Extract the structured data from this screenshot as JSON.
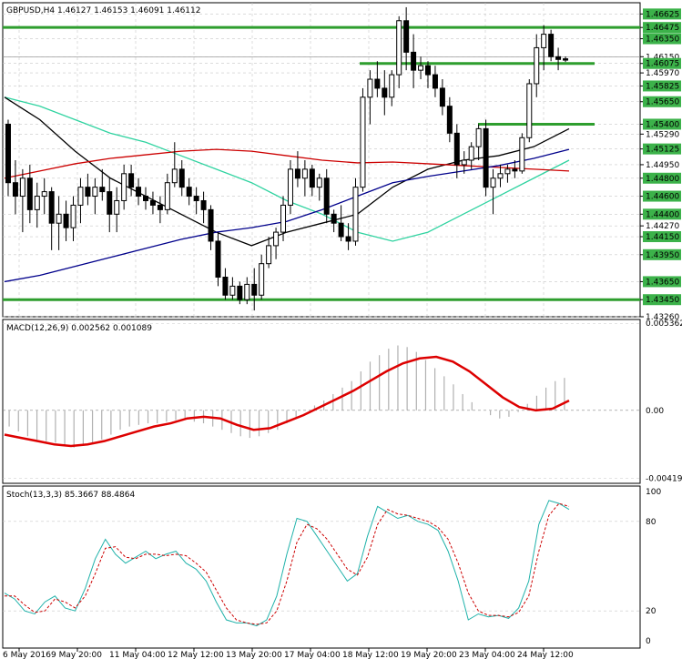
{
  "chart_data": [
    {
      "type": "candlestick",
      "panel": "price",
      "title": "GBPUSD,H4  1.46127 1.46153 1.46091 1.46112",
      "y_range": [
        1.4326,
        1.4675
      ],
      "y_ticks": [
        "1.46625",
        "1.46475",
        "1.46350",
        "1.46150",
        "1.46075",
        "1.45970",
        "1.45825",
        "1.45650",
        "1.45400",
        "1.45290",
        "1.45125",
        "1.44950",
        "1.44800",
        "1.44600",
        "1.44400",
        "1.44270",
        "1.44150",
        "1.43950",
        "1.43650",
        "1.43450",
        "1.43260"
      ],
      "highlighted_levels": [
        "1.46625",
        "1.46475",
        "1.46350",
        "1.46075",
        "1.45825",
        "1.45650",
        "1.45400",
        "1.45125",
        "1.44800",
        "1.44600",
        "1.44400",
        "1.44150",
        "1.43950",
        "1.43650",
        "1.43450"
      ],
      "support_resistance_levels": [
        1.46475,
        1.46075,
        1.454,
        1.4345
      ],
      "x_labels": [
        "6 May 2016",
        "9 May 20:00",
        "11 May 04:00",
        "12 May 12:00",
        "13 May 20:00",
        "17 May 04:00",
        "18 May 12:00",
        "19 May 20:00",
        "23 May 04:00",
        "24 May 12:00"
      ],
      "candles": [
        [
          1.454,
          1.4545,
          1.446,
          1.4475
        ],
        [
          1.4475,
          1.45,
          1.444,
          1.446
        ],
        [
          1.446,
          1.449,
          1.442,
          1.448
        ],
        [
          1.448,
          1.4495,
          1.443,
          1.4445
        ],
        [
          1.4445,
          1.4475,
          1.4425,
          1.446
        ],
        [
          1.446,
          1.448,
          1.444,
          1.4465
        ],
        [
          1.4465,
          1.447,
          1.44,
          1.443
        ],
        [
          1.443,
          1.446,
          1.44,
          1.444
        ],
        [
          1.444,
          1.4455,
          1.441,
          1.4425
        ],
        [
          1.4425,
          1.446,
          1.441,
          1.445
        ],
        [
          1.445,
          1.448,
          1.443,
          1.447
        ],
        [
          1.447,
          1.4485,
          1.445,
          1.446
        ],
        [
          1.446,
          1.448,
          1.444,
          1.447
        ],
        [
          1.447,
          1.449,
          1.4455,
          1.4465
        ],
        [
          1.4465,
          1.448,
          1.442,
          1.444
        ],
        [
          1.444,
          1.447,
          1.442,
          1.4455
        ],
        [
          1.4455,
          1.4495,
          1.4445,
          1.4485
        ],
        [
          1.4485,
          1.4495,
          1.446,
          1.447
        ],
        [
          1.447,
          1.448,
          1.445,
          1.446
        ],
        [
          1.446,
          1.447,
          1.4445,
          1.4455
        ],
        [
          1.4455,
          1.4465,
          1.444,
          1.445
        ],
        [
          1.445,
          1.446,
          1.443,
          1.4445
        ],
        [
          1.4445,
          1.4485,
          1.444,
          1.4475
        ],
        [
          1.4475,
          1.452,
          1.447,
          1.449
        ],
        [
          1.449,
          1.45,
          1.446,
          1.447
        ],
        [
          1.447,
          1.448,
          1.445,
          1.446
        ],
        [
          1.446,
          1.447,
          1.444,
          1.4455
        ],
        [
          1.4455,
          1.4465,
          1.443,
          1.4445
        ],
        [
          1.4445,
          1.445,
          1.44,
          1.441
        ],
        [
          1.441,
          1.442,
          1.436,
          1.437
        ],
        [
          1.437,
          1.438,
          1.4345,
          1.435
        ],
        [
          1.435,
          1.437,
          1.4345,
          1.436
        ],
        [
          1.436,
          1.4365,
          1.434,
          1.4345
        ],
        [
          1.4345,
          1.437,
          1.434,
          1.4362
        ],
        [
          1.4362,
          1.438,
          1.4333,
          1.435
        ],
        [
          1.435,
          1.4395,
          1.4345,
          1.4385
        ],
        [
          1.4385,
          1.4415,
          1.438,
          1.4405
        ],
        [
          1.4405,
          1.4425,
          1.439,
          1.442
        ],
        [
          1.442,
          1.446,
          1.441,
          1.445
        ],
        [
          1.445,
          1.45,
          1.444,
          1.449
        ],
        [
          1.449,
          1.451,
          1.447,
          1.448
        ],
        [
          1.448,
          1.45,
          1.446,
          1.449
        ],
        [
          1.449,
          1.4495,
          1.446,
          1.447
        ],
        [
          1.447,
          1.4485,
          1.4455,
          1.448
        ],
        [
          1.448,
          1.449,
          1.443,
          1.444
        ],
        [
          1.444,
          1.4445,
          1.442,
          1.443
        ],
        [
          1.443,
          1.445,
          1.441,
          1.4415
        ],
        [
          1.4415,
          1.443,
          1.44,
          1.441
        ],
        [
          1.441,
          1.448,
          1.4405,
          1.447
        ],
        [
          1.447,
          1.458,
          1.4465,
          1.457
        ],
        [
          1.457,
          1.46,
          1.454,
          1.459
        ],
        [
          1.459,
          1.461,
          1.457,
          1.458
        ],
        [
          1.458,
          1.46,
          1.455,
          1.457
        ],
        [
          1.457,
          1.46,
          1.456,
          1.4595
        ],
        [
          1.4595,
          1.466,
          1.458,
          1.4655
        ],
        [
          1.4655,
          1.467,
          1.46,
          1.462
        ],
        [
          1.462,
          1.464,
          1.458,
          1.46
        ],
        [
          1.46,
          1.4615,
          1.459,
          1.4605
        ],
        [
          1.4605,
          1.461,
          1.458,
          1.4595
        ],
        [
          1.4595,
          1.4605,
          1.457,
          1.458
        ],
        [
          1.458,
          1.459,
          1.455,
          1.456
        ],
        [
          1.456,
          1.457,
          1.452,
          1.453
        ],
        [
          1.453,
          1.454,
          1.448,
          1.4495
        ],
        [
          1.4495,
          1.451,
          1.4485,
          1.45
        ],
        [
          1.45,
          1.452,
          1.449,
          1.4515
        ],
        [
          1.4515,
          1.454,
          1.45,
          1.4535
        ],
        [
          1.4535,
          1.4545,
          1.446,
          1.447
        ],
        [
          1.447,
          1.449,
          1.444,
          1.448
        ],
        [
          1.448,
          1.4495,
          1.447,
          1.4485
        ],
        [
          1.4485,
          1.4495,
          1.4475,
          1.449
        ],
        [
          1.449,
          1.45,
          1.448,
          1.4488
        ],
        [
          1.4488,
          1.453,
          1.4485,
          1.4525
        ],
        [
          1.4525,
          1.459,
          1.452,
          1.4585
        ],
        [
          1.4585,
          1.464,
          1.457,
          1.4625
        ],
        [
          1.4625,
          1.465,
          1.46,
          1.464
        ],
        [
          1.464,
          1.4645,
          1.461,
          1.4615
        ],
        [
          1.4615,
          1.4625,
          1.46,
          1.4612
        ],
        [
          1.46127,
          1.46153,
          1.46091,
          1.46112
        ]
      ],
      "series": [
        {
          "name": "",
          "color": "#2fd3a0",
          "values": [
            1.457,
            1.456,
            1.4545,
            1.453,
            1.452,
            1.4505,
            1.449,
            1.4475,
            1.4455,
            1.444,
            1.442,
            1.441,
            1.442,
            1.444,
            1.446,
            1.448,
            1.45
          ]
        },
        {
          "name": "",
          "color": "#000000",
          "values": [
            1.457,
            1.4545,
            1.451,
            1.448,
            1.446,
            1.444,
            1.442,
            1.4405,
            1.442,
            1.443,
            1.444,
            1.447,
            1.449,
            1.45,
            1.4505,
            1.4515,
            1.4535
          ]
        },
        {
          "name": "",
          "color": "#cc0000",
          "values": [
            1.448,
            1.4488,
            1.4496,
            1.4502,
            1.4506,
            1.451,
            1.4512,
            1.451,
            1.4505,
            1.45,
            1.4497,
            1.4498,
            1.4496,
            1.4494,
            1.4492,
            1.449,
            1.4488
          ]
        },
        {
          "name": "",
          "color": "#00008b",
          "values": [
            1.4365,
            1.4372,
            1.4382,
            1.4392,
            1.4402,
            1.4412,
            1.442,
            1.4425,
            1.4432,
            1.4445,
            1.446,
            1.4475,
            1.4482,
            1.4488,
            1.4494,
            1.4502,
            1.4512
          ]
        }
      ]
    },
    {
      "type": "histogram+line",
      "panel": "macd",
      "title": "MACD(12,26,9) 0.002562 0.001089",
      "y_ticks": [
        "0.005362",
        "0.00",
        "-0.004199"
      ],
      "y_range": [
        -0.0045,
        0.0056
      ],
      "histogram": [
        -0.001,
        -0.0013,
        -0.0016,
        -0.0018,
        -0.0019,
        -0.002,
        -0.0022,
        -0.0023,
        -0.0022,
        -0.002,
        -0.0018,
        -0.0015,
        -0.0012,
        -0.001,
        -0.0009,
        -0.0008,
        -0.0008,
        -0.0007,
        -0.0006,
        -0.0006,
        -0.0007,
        -0.0008,
        -0.001,
        -0.0012,
        -0.0014,
        -0.0016,
        -0.0017,
        -0.0016,
        -0.0014,
        -0.0012,
        -0.0008,
        -0.0004,
        0.0,
        0.0003,
        0.0006,
        0.001,
        0.0014,
        0.0018,
        0.0024,
        0.003,
        0.0034,
        0.0038,
        0.004,
        0.0039,
        0.0036,
        0.0031,
        0.0026,
        0.0021,
        0.0016,
        0.001,
        0.0005,
        0.0,
        -0.0003,
        -0.0005,
        -0.0004,
        -0.0001,
        0.0004,
        0.0009,
        0.0014,
        0.0018,
        0.002
      ],
      "signal": [
        -0.0015,
        -0.0017,
        -0.0019,
        -0.0021,
        -0.0022,
        -0.0021,
        -0.0019,
        -0.0016,
        -0.0013,
        -0.001,
        -0.0008,
        -0.0005,
        -0.0004,
        -0.0005,
        -0.0009,
        -0.0012,
        -0.0011,
        -0.0007,
        -0.0003,
        0.0002,
        0.0007,
        0.0012,
        0.0018,
        0.0024,
        0.0029,
        0.0032,
        0.0033,
        0.003,
        0.0024,
        0.0016,
        0.0008,
        0.0002,
        0.0,
        0.0001,
        0.0006
      ]
    },
    {
      "type": "line",
      "panel": "stochastic",
      "title": "Stoch(13,3,3) 85.3667 88.4864",
      "y_ticks": [
        "100",
        "80",
        "20",
        "0"
      ],
      "y_range": [
        0,
        100
      ],
      "series": [
        {
          "name": "",
          "color": "#20b2aa",
          "values": [
            32,
            28,
            20,
            18,
            26,
            30,
            22,
            20,
            35,
            55,
            68,
            58,
            52,
            56,
            60,
            55,
            58,
            60,
            52,
            48,
            40,
            26,
            14,
            12,
            12,
            10,
            14,
            30,
            58,
            82,
            80,
            70,
            60,
            50,
            40,
            45,
            70,
            90,
            86,
            82,
            84,
            80,
            78,
            74,
            60,
            40,
            14,
            18,
            16,
            17,
            15,
            22,
            40,
            78,
            94,
            92,
            88
          ]
        },
        {
          "name": "",
          "color": "#cc0000",
          "values": [
            30,
            30,
            24,
            19,
            20,
            28,
            26,
            22,
            30,
            45,
            62,
            63,
            56,
            55,
            58,
            58,
            57,
            58,
            57,
            52,
            46,
            34,
            22,
            14,
            12,
            11,
            12,
            20,
            40,
            66,
            78,
            75,
            68,
            58,
            48,
            44,
            56,
            78,
            88,
            85,
            84,
            82,
            80,
            76,
            68,
            52,
            32,
            20,
            17,
            17,
            16,
            19,
            30,
            60,
            84,
            92,
            90
          ]
        }
      ]
    }
  ]
}
